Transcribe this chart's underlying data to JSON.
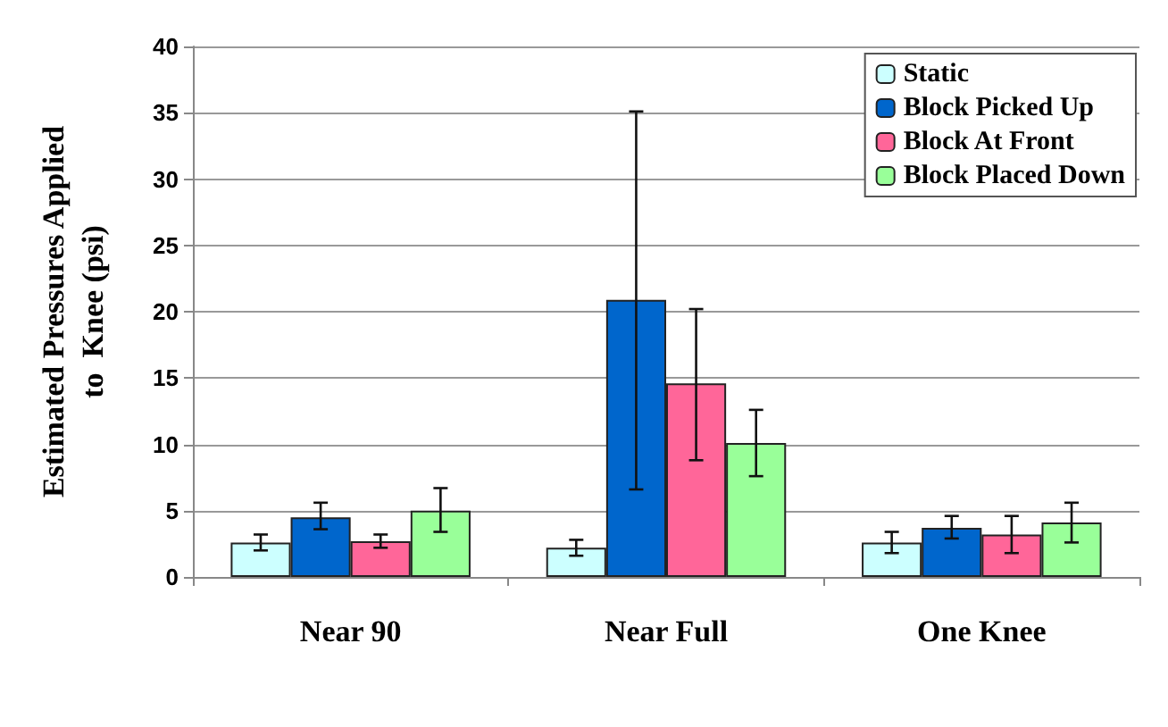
{
  "chart_data": {
    "type": "bar",
    "ylabel": "Estimated Pressures Applied\nto  Knee (psi)",
    "categories": [
      "Near 90",
      "Near Full",
      "One Knee"
    ],
    "series": [
      {
        "name": "Static",
        "color": "#ccffff",
        "values": [
          2.6,
          2.2,
          2.6
        ],
        "errors": [
          [
            2.0,
            3.2
          ],
          [
            1.6,
            2.8
          ],
          [
            1.8,
            3.4
          ]
        ]
      },
      {
        "name": "Block Picked Up",
        "color": "#0066cc",
        "values": [
          4.5,
          20.9,
          3.7
        ],
        "errors": [
          [
            3.6,
            5.6
          ],
          [
            6.6,
            35.1
          ],
          [
            2.9,
            4.6
          ]
        ]
      },
      {
        "name": "Block At Front",
        "color": "#ff6699",
        "values": [
          2.7,
          14.6,
          3.2
        ],
        "errors": [
          [
            2.2,
            3.2
          ],
          [
            8.8,
            20.2
          ],
          [
            1.8,
            4.6
          ]
        ]
      },
      {
        "name": "Block Placed Down",
        "color": "#99ff99",
        "values": [
          5.0,
          10.1,
          4.1
        ],
        "errors": [
          [
            3.4,
            6.7
          ],
          [
            7.6,
            12.6
          ],
          [
            2.6,
            5.6
          ]
        ]
      }
    ],
    "ylim": [
      0,
      40
    ],
    "yticks": [
      0,
      5,
      10,
      15,
      20,
      25,
      30,
      35,
      40
    ],
    "grid": "y",
    "legend": "top right"
  }
}
